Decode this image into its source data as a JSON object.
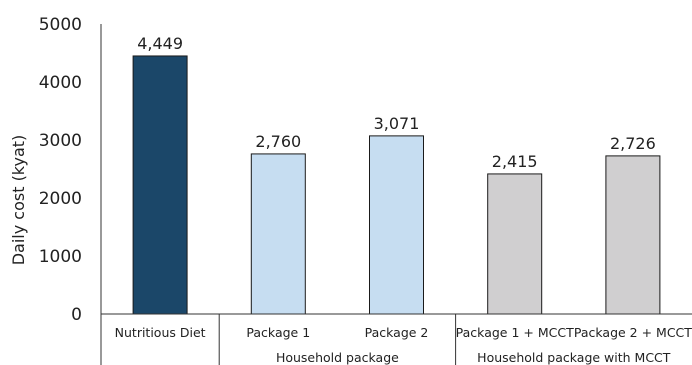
{
  "chart_data": {
    "type": "bar",
    "ylabel": "Daily cost (kyat)",
    "xlabel": "",
    "ylim": [
      0,
      5000
    ],
    "yticks": [
      0,
      1000,
      2000,
      3000,
      4000,
      5000
    ],
    "grid": false,
    "categories": [
      "Nutritious Diet",
      "Package 1",
      "Package 2",
      "Package 1 + MCCT",
      "Package 2 + MCCT"
    ],
    "values": [
      4449,
      2760,
      3071,
      2415,
      2726
    ],
    "data_labels": [
      "4,449",
      "2,760",
      "3,071",
      "2,415",
      "2,726"
    ],
    "bar_colors": [
      "#1b4769",
      "#c6ddf1",
      "#c6ddf1",
      "#d0cfd0",
      "#d0cfd0"
    ],
    "groups": [
      {
        "label": "",
        "categories": [
          0
        ]
      },
      {
        "label": "Household package",
        "categories": [
          1,
          2
        ]
      },
      {
        "label": "Household package with MCCT",
        "categories": [
          3,
          4
        ]
      }
    ]
  }
}
